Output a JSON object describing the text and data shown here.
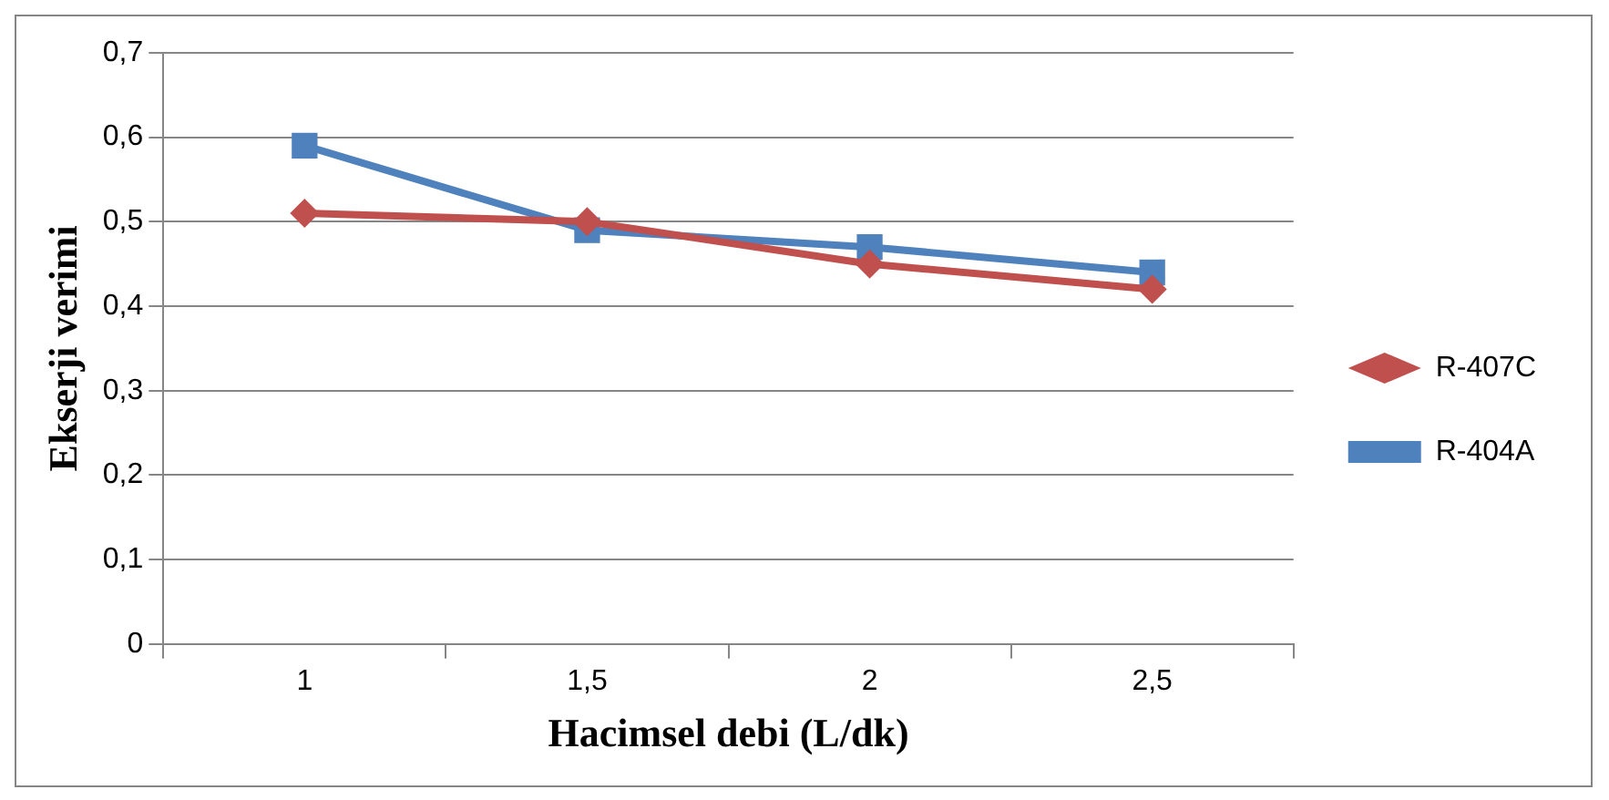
{
  "chart_data": {
    "type": "line",
    "xlabel": "Hacimsel debi (L/dk)",
    "ylabel": "Ekserji verimi",
    "categories": [
      "1",
      "1,5",
      "2",
      "2,5"
    ],
    "series": [
      {
        "name": "R-407C",
        "color": "#c0504d",
        "marker": "diamond",
        "values": [
          0.51,
          0.5,
          0.45,
          0.42
        ]
      },
      {
        "name": "R-404A",
        "color": "#4f81bd",
        "marker": "square",
        "values": [
          0.59,
          0.49,
          0.47,
          0.44
        ]
      }
    ],
    "ylim": [
      0,
      0.7
    ],
    "yticks": [
      {
        "value": 0,
        "label": "0"
      },
      {
        "value": 0.1,
        "label": "0,1"
      },
      {
        "value": 0.2,
        "label": "0,2"
      },
      {
        "value": 0.3,
        "label": "0,3"
      },
      {
        "value": 0.4,
        "label": "0,4"
      },
      {
        "value": 0.5,
        "label": "0,5"
      },
      {
        "value": 0.6,
        "label": "0,6"
      },
      {
        "value": 0.7,
        "label": "0,7"
      }
    ],
    "grid": "y",
    "legend": "right",
    "line_style": "solid"
  }
}
